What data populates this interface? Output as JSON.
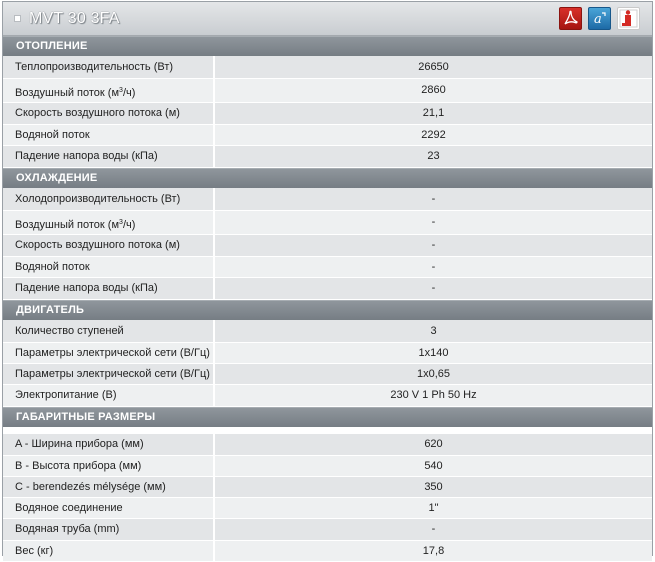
{
  "window": {
    "title": "MVT 30 3FA"
  },
  "icons": [
    {
      "name": "pdf-icon",
      "color": "#c2211c"
    },
    {
      "name": "autocad-icon",
      "color": "#2a7fc0"
    },
    {
      "name": "info-icon",
      "color": "#d42a24"
    }
  ],
  "heating": {
    "title": "ОТОПЛЕНИЕ",
    "rows": [
      {
        "label": "Теплопроизводительность (Вт)",
        "value": "26650"
      },
      {
        "label_pre": "Воздушный поток (м",
        "label_sup": "3",
        "label_post": "/ч)",
        "value": "2860"
      },
      {
        "label": "Скорость воздушного потока (м)",
        "value": "21,1"
      },
      {
        "label": "Водяной поток",
        "value": "2292"
      },
      {
        "label": "Падение напора воды (кПа)",
        "value": "23"
      }
    ]
  },
  "cooling": {
    "title": "ОХЛАЖДЕНИЕ",
    "rows": [
      {
        "label": "Холодопроизводительность (Вт)",
        "value": "-"
      },
      {
        "label_pre": "Воздушный поток (м",
        "label_sup": "3",
        "label_post": "/ч)",
        "value": "-"
      },
      {
        "label": "Скорость воздушного потока (м)",
        "value": "-"
      },
      {
        "label": "Водяной поток",
        "value": "-"
      },
      {
        "label": "Падение напора воды (кПа)",
        "value": "-"
      }
    ]
  },
  "motor": {
    "title": "ДВИГАТЕЛЬ",
    "rows": [
      {
        "label": "Количество ступеней",
        "value": "3"
      },
      {
        "label": "Параметры электрической сети (В/Гц)",
        "value": "1x140"
      },
      {
        "label": "Параметры электрической сети (В/Гц)",
        "value": "1x0,65"
      },
      {
        "label": "Электропитание (В)",
        "value": "230 V 1 Ph 50 Hz"
      }
    ]
  },
  "dimensions": {
    "title": "ГАБАРИТНЫЕ РАЗМЕРЫ",
    "rows": [
      {
        "label": "A - Ширина прибора (мм)",
        "value": "620"
      },
      {
        "label": "B - Высота прибора (мм)",
        "value": "540"
      },
      {
        "label": "C - berendezés mélysége (мм)",
        "value": "350"
      },
      {
        "label": "Водяное соединение",
        "value": "1\""
      },
      {
        "label": "Водяная труба (mm)",
        "value": "-"
      },
      {
        "label": "Вес (кг)",
        "value": "17,8"
      }
    ]
  }
}
